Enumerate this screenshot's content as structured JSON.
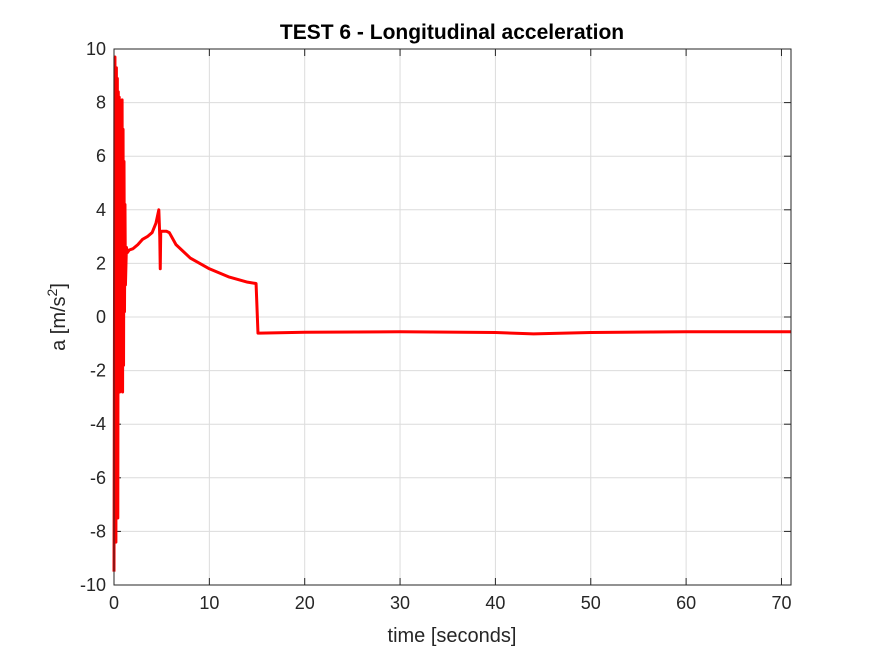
{
  "chart_data": {
    "type": "line",
    "title": "TEST 6 - Longitudinal acceleration",
    "xlabel": "time [seconds]",
    "ylabel": "a [m/s",
    "ylabel_sup": "2",
    "ylabel_end": "]",
    "xlim": [
      0,
      71
    ],
    "ylim": [
      -10,
      10
    ],
    "xticks": [
      0,
      10,
      20,
      30,
      40,
      50,
      60,
      70
    ],
    "yticks": [
      -10,
      -8,
      -6,
      -4,
      -2,
      0,
      2,
      4,
      6,
      8,
      10
    ],
    "xtick_labels": [
      "0",
      "10",
      "20",
      "30",
      "40",
      "50",
      "60",
      "70"
    ],
    "ytick_labels": [
      "-10",
      "-8",
      "-6",
      "-4",
      "-2",
      "0",
      "2",
      "4",
      "6",
      "8",
      "10"
    ],
    "grid": true,
    "box": true,
    "series": [
      {
        "color": "#ff0000",
        "x": [
          0,
          0.1,
          0.2,
          0.25,
          0.3,
          0.35,
          0.4,
          0.45,
          0.5,
          0.55,
          0.6,
          0.65,
          0.7,
          0.75,
          0.8,
          0.85,
          0.9,
          0.95,
          1.0,
          1.05,
          1.1,
          1.15,
          1.2,
          1.3,
          1.4,
          1.6,
          2.0,
          2.5,
          3.0,
          3.5,
          4.0,
          4.4,
          4.7,
          4.8,
          4.85,
          4.9,
          5.0,
          5.5,
          5.8,
          6.5,
          8,
          10,
          12,
          14,
          14.9,
          15.1,
          15.3,
          20,
          30,
          40,
          44,
          50,
          60,
          71
        ],
        "y": [
          -9.5,
          9.7,
          -8.4,
          9.3,
          -2.3,
          8.9,
          -7.5,
          8.4,
          -1.5,
          8.2,
          -2.8,
          8.0,
          -2.5,
          7.8,
          -2.6,
          8.1,
          -2.8,
          7.0,
          -1.8,
          5.8,
          0.2,
          4.2,
          1.2,
          2.6,
          2.4,
          2.5,
          2.55,
          2.7,
          2.9,
          3.0,
          3.15,
          3.5,
          4.0,
          3.0,
          1.8,
          3.15,
          3.2,
          3.2,
          3.15,
          2.7,
          2.2,
          1.8,
          1.5,
          1.3,
          1.25,
          -0.6,
          -0.6,
          -0.57,
          -0.55,
          -0.58,
          -0.63,
          -0.58,
          -0.55,
          -0.55
        ]
      }
    ]
  }
}
